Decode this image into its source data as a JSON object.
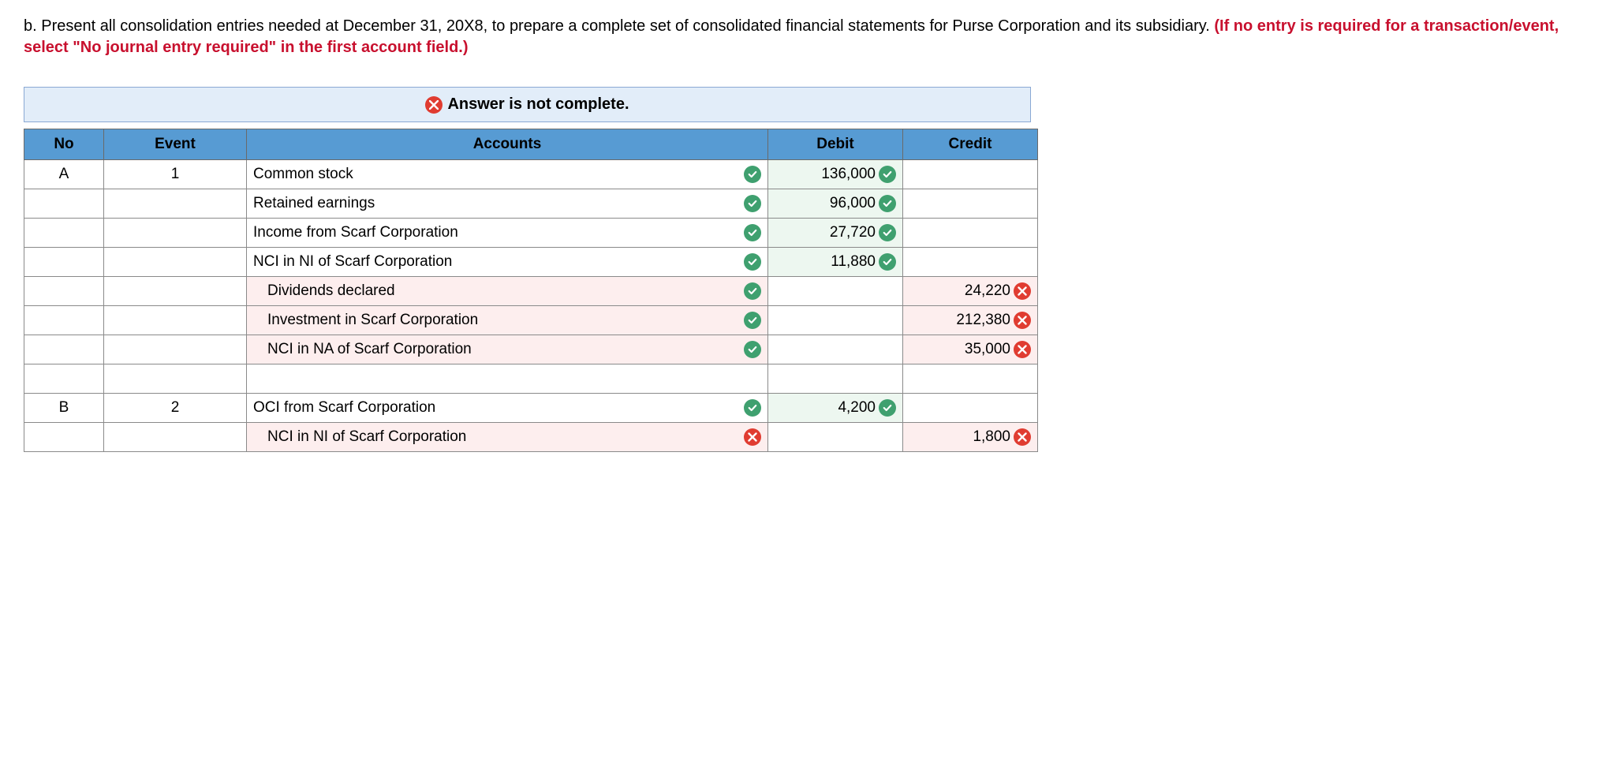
{
  "question": {
    "prefix": "b. Present all consolidation entries needed at December 31, 20X8, to prepare a complete set of consolidated financial statements for Purse Corporation and its subsidiary. ",
    "red_note": "(If no entry is required for a transaction/event, select \"No journal entry required\" in the first account field.)"
  },
  "banner": {
    "text": "Answer is not complete."
  },
  "table": {
    "headers": {
      "no": "No",
      "event": "Event",
      "accounts": "Accounts",
      "debit": "Debit",
      "credit": "Credit"
    },
    "rows": [
      {
        "no": "A",
        "event": "1",
        "account": "Common stock",
        "indent": false,
        "acc_mark": "correct",
        "debit": "136,000",
        "debit_mark": "correct",
        "credit": "",
        "credit_mark": "",
        "bg": ""
      },
      {
        "no": "",
        "event": "",
        "account": "Retained earnings",
        "indent": false,
        "acc_mark": "correct",
        "debit": "96,000",
        "debit_mark": "correct",
        "credit": "",
        "credit_mark": "",
        "bg": ""
      },
      {
        "no": "",
        "event": "",
        "account": "Income from Scarf Corporation",
        "indent": false,
        "acc_mark": "correct",
        "debit": "27,720",
        "debit_mark": "correct",
        "credit": "",
        "credit_mark": "",
        "bg": ""
      },
      {
        "no": "",
        "event": "",
        "account": "NCI in NI of Scarf Corporation",
        "indent": false,
        "acc_mark": "correct",
        "debit": "11,880",
        "debit_mark": "correct",
        "credit": "",
        "credit_mark": "",
        "bg": ""
      },
      {
        "no": "",
        "event": "",
        "account": "Dividends declared",
        "indent": true,
        "acc_mark": "correct",
        "debit": "",
        "debit_mark": "",
        "credit": "24,220",
        "credit_mark": "wrong",
        "bg": "pink"
      },
      {
        "no": "",
        "event": "",
        "account": "Investment in Scarf Corporation",
        "indent": true,
        "acc_mark": "correct",
        "debit": "",
        "debit_mark": "",
        "credit": "212,380",
        "credit_mark": "wrong",
        "bg": "pink"
      },
      {
        "no": "",
        "event": "",
        "account": "NCI in NA of Scarf Corporation",
        "indent": true,
        "acc_mark": "correct",
        "debit": "",
        "debit_mark": "",
        "credit": "35,000",
        "credit_mark": "wrong",
        "bg": "pink"
      },
      {
        "no": "",
        "event": "",
        "account": "",
        "indent": false,
        "acc_mark": "",
        "debit": "",
        "debit_mark": "",
        "credit": "",
        "credit_mark": "",
        "bg": ""
      },
      {
        "no": "B",
        "event": "2",
        "account": "OCI from Scarf Corporation",
        "indent": false,
        "acc_mark": "correct",
        "debit": "4,200",
        "debit_mark": "correct",
        "credit": "",
        "credit_mark": "",
        "bg": ""
      },
      {
        "no": "",
        "event": "",
        "account": "NCI in NI of Scarf Corporation",
        "indent": true,
        "acc_mark": "wrong",
        "debit": "",
        "debit_mark": "",
        "credit": "1,800",
        "credit_mark": "wrong",
        "bg": "pink"
      }
    ]
  },
  "colors": {
    "header_bg": "#579bd3",
    "banner_bg": "#e2edf9",
    "banner_border": "#8aa8d4",
    "red": "#c8102e",
    "correct": "#3fa06f",
    "wrong": "#e03c31",
    "pink_row": "#fdeeee"
  }
}
